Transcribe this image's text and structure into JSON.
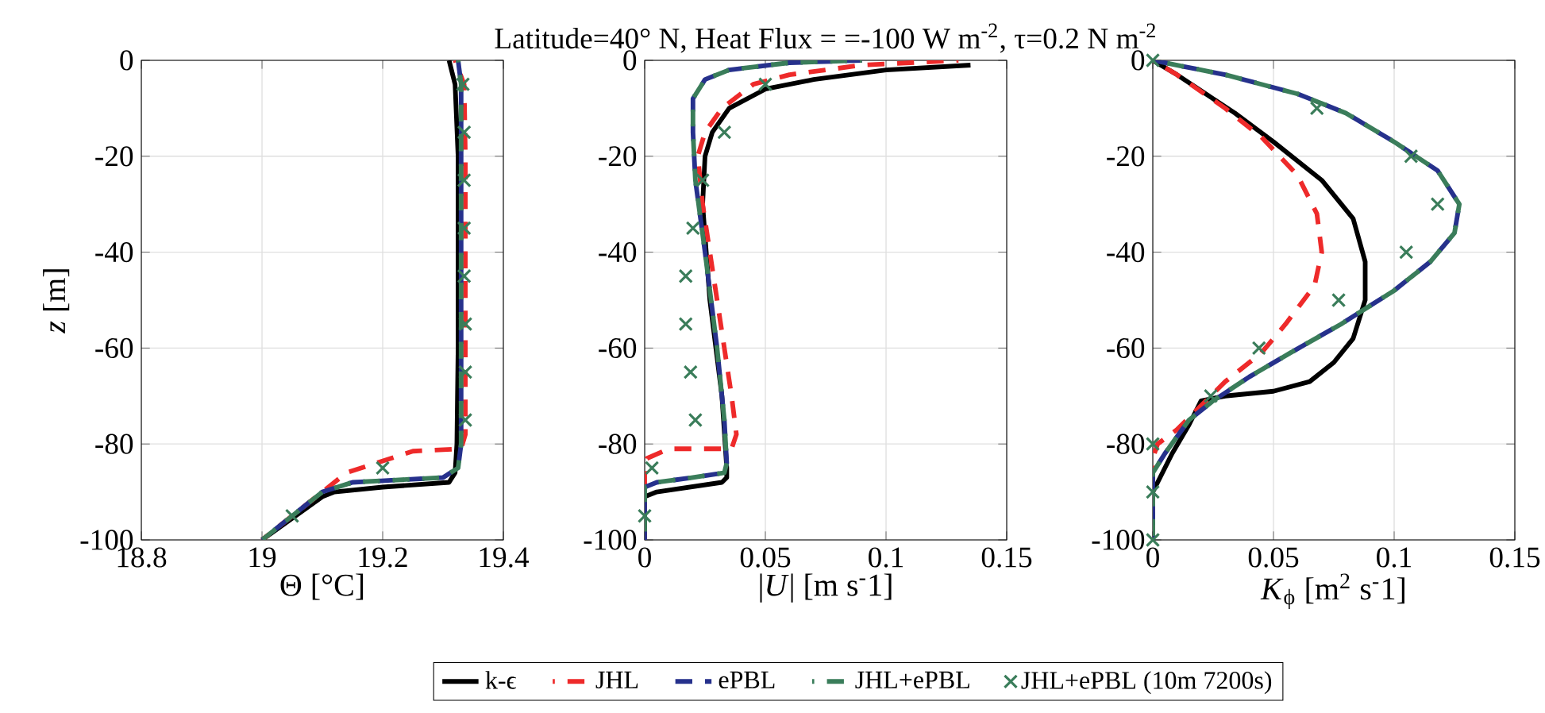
{
  "chart_data": [
    {
      "type": "line",
      "xlabel": "Θ [°C]",
      "ylabel": "*z* [m]",
      "xlim": [
        18.8,
        19.4
      ],
      "xticks": [
        18.8,
        19,
        19.2,
        19.4
      ],
      "ylim": [
        -100,
        0
      ],
      "yticks": [
        -100,
        -80,
        -60,
        -40,
        -20,
        0
      ],
      "grid": true,
      "legend": false,
      "series": [
        {
          "color": "#000000",
          "line_style": "solid",
          "x": [
            19.31,
            19.32,
            19.325,
            19.325,
            19.323,
            19.32,
            19.31,
            19.2,
            19.12,
            19.1,
            19.0
          ],
          "values": [
            0,
            -5,
            -20,
            -60,
            -80,
            -86,
            -88,
            -89,
            -90,
            -91,
            -100
          ]
        },
        {
          "color": "#ee2a2a",
          "line_style": "dashed",
          "x": [
            19.32,
            19.335,
            19.337,
            19.337,
            19.33,
            19.25,
            19.14,
            19.1,
            19.0
          ],
          "values": [
            0,
            -5,
            -20,
            -78,
            -81,
            -81.5,
            -86,
            -90,
            -100
          ]
        },
        {
          "color": "#26318c",
          "line_style": "dashed",
          "x": [
            19.325,
            19.33,
            19.33,
            19.325,
            19.3,
            19.15,
            19.1,
            19.0
          ],
          "values": [
            0,
            -5,
            -80,
            -85,
            -87,
            -88,
            -90,
            -100
          ]
        },
        {
          "color": "#3a7d5a",
          "line_style": "dashed",
          "x": [
            19.325,
            19.33,
            19.33,
            19.325,
            19.3,
            19.15,
            19.1,
            19.0
          ],
          "values": [
            0,
            -5,
            -80,
            -85,
            -87,
            -88,
            -90,
            -100
          ]
        },
        {
          "type": "scatter",
          "marker": "cross",
          "color": "#3a7d5a",
          "x": [
            19.333,
            19.335,
            19.335,
            19.335,
            19.335,
            19.337,
            19.337,
            19.337,
            19.2,
            19.05
          ],
          "values": [
            -5,
            -15,
            -25,
            -35,
            -45,
            -55,
            -65,
            -75,
            -85,
            -95
          ]
        }
      ]
    },
    {
      "type": "line",
      "title": "Latitude=40° N, Heat Flux = =-100 W m$^{-2}$, τ=0.2 N m$^{-2}$",
      "xlabel": "|*U*| [m s$^{-}$1]",
      "xlim": [
        0,
        0.15
      ],
      "xticks": [
        0,
        0.05,
        0.1,
        0.15
      ],
      "ylim": [
        -100,
        0
      ],
      "yticks": [
        -100,
        -80,
        -60,
        -40,
        -20,
        0
      ],
      "grid": true,
      "legend": "bottom",
      "series": [
        {
          "name": "k-ϵ",
          "color": "#000000",
          "line_style": "solid",
          "x": [
            0.135,
            0.1,
            0.07,
            0.05,
            0.035,
            0.028,
            0.025,
            0.024,
            0.027,
            0.032,
            0.034,
            0.034,
            0.032,
            0.005,
            0,
            0
          ],
          "values": [
            -1,
            -2,
            -4,
            -6,
            -10,
            -15,
            -20,
            -30,
            -50,
            -70,
            -85,
            -87,
            -88,
            -90,
            -91,
            -100
          ]
        },
        {
          "name": "JHL",
          "color": "#ee2a2a",
          "line_style": "dashed",
          "x": [
            0.13,
            0.09,
            0.06,
            0.045,
            0.032,
            0.025,
            0.022,
            0.024,
            0.03,
            0.036,
            0.038,
            0.036,
            0.01,
            0.001,
            0,
            0
          ],
          "values": [
            0,
            -1,
            -3,
            -5,
            -10,
            -15,
            -20,
            -30,
            -50,
            -70,
            -78,
            -81,
            -81,
            -83,
            -85,
            -100
          ]
        },
        {
          "name": "ePBL",
          "color": "#26318c",
          "line_style": "dashed",
          "x": [
            0.09,
            0.06,
            0.035,
            0.025,
            0.02,
            0.02,
            0.021,
            0.025,
            0.03,
            0.033,
            0.034,
            0.033,
            0.02,
            0.005,
            0,
            0
          ],
          "values": [
            0,
            -0.5,
            -2,
            -4,
            -8,
            -15,
            -25,
            -40,
            -60,
            -75,
            -84,
            -86,
            -87,
            -88,
            -89,
            -100
          ]
        },
        {
          "name": "JHL+ePBL",
          "color": "#3a7d5a",
          "line_style": "dashed",
          "x": [
            0.09,
            0.06,
            0.035,
            0.025,
            0.02,
            0.02,
            0.021,
            0.025,
            0.03,
            0.033,
            0.034,
            0.033,
            0.02,
            0.005,
            0,
            0
          ],
          "values": [
            0,
            -0.5,
            -2,
            -4,
            -8,
            -15,
            -25,
            -40,
            -60,
            -75,
            -84,
            -86,
            -87,
            -88,
            -89,
            -100
          ]
        },
        {
          "name": "JHL+ePBL (10m 7200s)",
          "type": "scatter",
          "marker": "cross",
          "color": "#3a7d5a",
          "x": [
            0.05,
            0.033,
            0.024,
            0.02,
            0.017,
            0.017,
            0.019,
            0.021,
            0.003,
            0
          ],
          "values": [
            -5,
            -15,
            -25,
            -35,
            -45,
            -55,
            -65,
            -75,
            -85,
            -95
          ]
        }
      ]
    },
    {
      "type": "line",
      "xlabel": "*K*$_{ϕ}$ [m$^{2}$ s$^{-}$1]",
      "xlim": [
        0,
        0.15
      ],
      "xticks": [
        0,
        0.05,
        0.1,
        0.15
      ],
      "ylim": [
        -100,
        0
      ],
      "yticks": [
        -100,
        -80,
        -60,
        -40,
        -20,
        0
      ],
      "grid": true,
      "legend": false,
      "series": [
        {
          "color": "#000000",
          "line_style": "solid",
          "x": [
            0,
            0.01,
            0.034,
            0.05,
            0.07,
            0.083,
            0.088,
            0.088,
            0.083,
            0.075,
            0.065,
            0.05,
            0.03,
            0.02,
            0.015,
            0.008,
            0.002,
            0,
            0
          ],
          "values": [
            0,
            -3,
            -11,
            -17,
            -25,
            -33,
            -42,
            -50,
            -58,
            -63,
            -67,
            -69,
            -70,
            -71,
            -76,
            -82,
            -88,
            -90,
            -100
          ]
        },
        {
          "color": "#ee2a2a",
          "line_style": "dashed",
          "x": [
            0,
            0.01,
            0.03,
            0.045,
            0.06,
            0.068,
            0.07,
            0.067,
            0.055,
            0.045,
            0.03,
            0.02,
            0.01,
            0.002,
            0,
            0
          ],
          "values": [
            0,
            -3,
            -10,
            -16,
            -24,
            -32,
            -40,
            -47,
            -55,
            -61,
            -67,
            -72,
            -77,
            -80,
            -83,
            -100
          ]
        },
        {
          "color": "#26318c",
          "line_style": "dashed",
          "x": [
            0,
            0.03,
            0.06,
            0.08,
            0.1,
            0.118,
            0.127,
            0.125,
            0.115,
            0.1,
            0.078,
            0.057,
            0.04,
            0.025,
            0.015,
            0.005,
            0,
            0
          ],
          "values": [
            0,
            -3,
            -7,
            -11,
            -17,
            -23,
            -30,
            -36,
            -42,
            -48,
            -55,
            -61,
            -66,
            -71,
            -75,
            -82,
            -86,
            -100
          ]
        },
        {
          "color": "#3a7d5a",
          "line_style": "dashed",
          "x": [
            0,
            0.03,
            0.06,
            0.08,
            0.1,
            0.118,
            0.127,
            0.125,
            0.115,
            0.1,
            0.078,
            0.057,
            0.04,
            0.025,
            0.015,
            0.005,
            0,
            0
          ],
          "values": [
            0,
            -3,
            -7,
            -11,
            -17,
            -23,
            -30,
            -36,
            -42,
            -48,
            -55,
            -61,
            -66,
            -71,
            -75,
            -82,
            -86,
            -100
          ]
        },
        {
          "type": "scatter",
          "marker": "cross",
          "color": "#3a7d5a",
          "x": [
            0,
            0.068,
            0.107,
            0.118,
            0.105,
            0.077,
            0.044,
            0.024,
            0,
            0,
            0
          ],
          "values": [
            0,
            -10,
            -20,
            -30,
            -40,
            -50,
            -60,
            -70,
            -80,
            -90,
            -100
          ]
        }
      ]
    }
  ]
}
